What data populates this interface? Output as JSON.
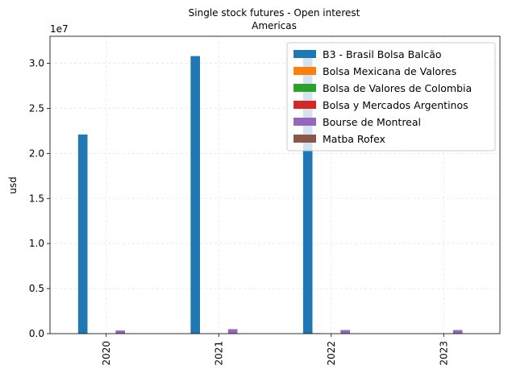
{
  "chart_data": {
    "type": "bar",
    "title": "Single stock futures - Open interest",
    "subtitle": "Americas",
    "xlabel": "",
    "ylabel": "usd",
    "y_multiplier_label": "1e7",
    "y_scale_factor": 10000000,
    "ylim": [
      0,
      33000000
    ],
    "yticks": [
      0,
      5000000,
      10000000,
      15000000,
      20000000,
      25000000,
      30000000
    ],
    "ytick_labels": [
      "0.0",
      "0.5",
      "1.0",
      "1.5",
      "2.0",
      "2.5",
      "3.0"
    ],
    "categories": [
      "2020",
      "2021",
      "2022",
      "2023"
    ],
    "grid": true,
    "legend_position": "top-right",
    "series": [
      {
        "name": "B3 - Brasil Bolsa Balcão",
        "color": "#1f77b4",
        "values": [
          22100000,
          30800000,
          31500000,
          0
        ]
      },
      {
        "name": "Bolsa Mexicana de Valores",
        "color": "#ff7f0e",
        "values": [
          0,
          0,
          50000,
          0
        ]
      },
      {
        "name": "Bolsa de Valores de Colombia",
        "color": "#2ca02c",
        "values": [
          0,
          0,
          0,
          0
        ]
      },
      {
        "name": "Bolsa y Mercados Argentinos",
        "color": "#d62728",
        "values": [
          0,
          0,
          0,
          0
        ]
      },
      {
        "name": "Bourse de Montreal",
        "color": "#9467bd",
        "values": [
          350000,
          500000,
          400000,
          400000
        ]
      },
      {
        "name": "Matba Rofex",
        "color": "#8c564b",
        "values": [
          0,
          0,
          0,
          0
        ]
      }
    ]
  }
}
